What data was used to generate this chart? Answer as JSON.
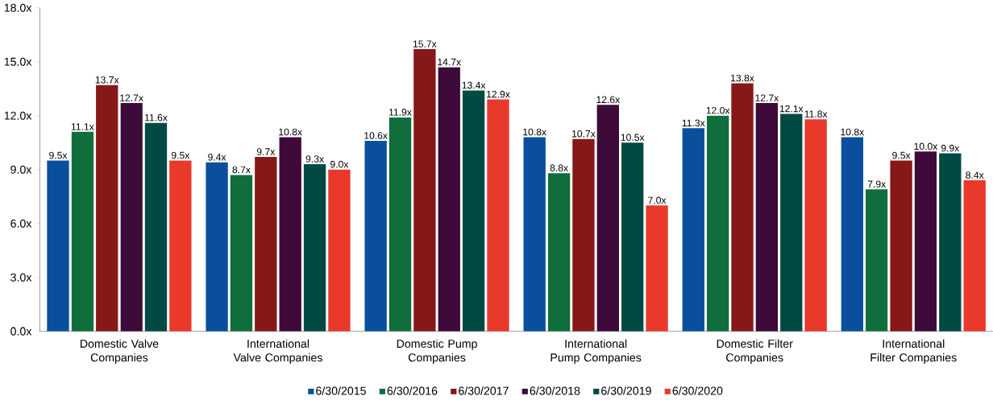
{
  "chart_data": {
    "type": "bar",
    "categories": [
      "Domestic Valve Companies",
      "International Valve Companies",
      "Domestic Pump Companies",
      "International Pump Companies",
      "Domestic Filter Companies",
      "International Filter Companies"
    ],
    "series": [
      {
        "name": "6/30/2015",
        "color": "#0a4f9c",
        "values": [
          9.5,
          9.4,
          10.6,
          10.8,
          11.3,
          10.8
        ],
        "value_labels": [
          "9.5x",
          "9.4x",
          "10.6x",
          "10.8x",
          "11.3x",
          "10.8x"
        ]
      },
      {
        "name": "6/30/2016",
        "color": "#0f6e3c",
        "values": [
          11.1,
          8.7,
          11.9,
          8.8,
          12.0,
          7.9
        ],
        "value_labels": [
          "11.1x",
          "8.7x",
          "11.9x",
          "8.8x",
          "12.0x",
          "7.9x"
        ]
      },
      {
        "name": "6/30/2017",
        "color": "#861818",
        "values": [
          13.7,
          9.7,
          15.7,
          10.7,
          13.8,
          9.5
        ],
        "value_labels": [
          "13.7x",
          "9.7x",
          "15.7x",
          "10.7x",
          "13.8x",
          "9.5x"
        ]
      },
      {
        "name": "6/30/2018",
        "color": "#3e0a3a",
        "values": [
          12.7,
          10.8,
          14.7,
          12.6,
          12.7,
          10.0
        ],
        "value_labels": [
          "12.7x",
          "10.8x",
          "14.7x",
          "12.6x",
          "12.7x",
          "10.0x"
        ]
      },
      {
        "name": "6/30/2019",
        "color": "#004a44",
        "values": [
          11.6,
          9.3,
          13.4,
          10.5,
          12.1,
          9.9
        ],
        "value_labels": [
          "11.6x",
          "9.3x",
          "13.4x",
          "10.5x",
          "12.1x",
          "9.9x"
        ]
      },
      {
        "name": "6/30/2020",
        "color": "#e8392b",
        "values": [
          9.5,
          9.0,
          12.9,
          7.0,
          11.8,
          8.4
        ],
        "value_labels": [
          "9.5x",
          "9.0x",
          "12.9x",
          "7.0x",
          "11.8x",
          "8.4x"
        ]
      }
    ],
    "ylim": [
      0,
      18
    ],
    "yticks": [
      {
        "value": 0,
        "label": "0.0x"
      },
      {
        "value": 3,
        "label": "3.0x"
      },
      {
        "value": 6,
        "label": "6.0x"
      },
      {
        "value": 9,
        "label": "9.0x"
      },
      {
        "value": 12,
        "label": "12.0x"
      },
      {
        "value": 15,
        "label": "15.0x"
      },
      {
        "value": 18,
        "label": "18.0x"
      }
    ],
    "grid": false,
    "legend": "bottom"
  }
}
